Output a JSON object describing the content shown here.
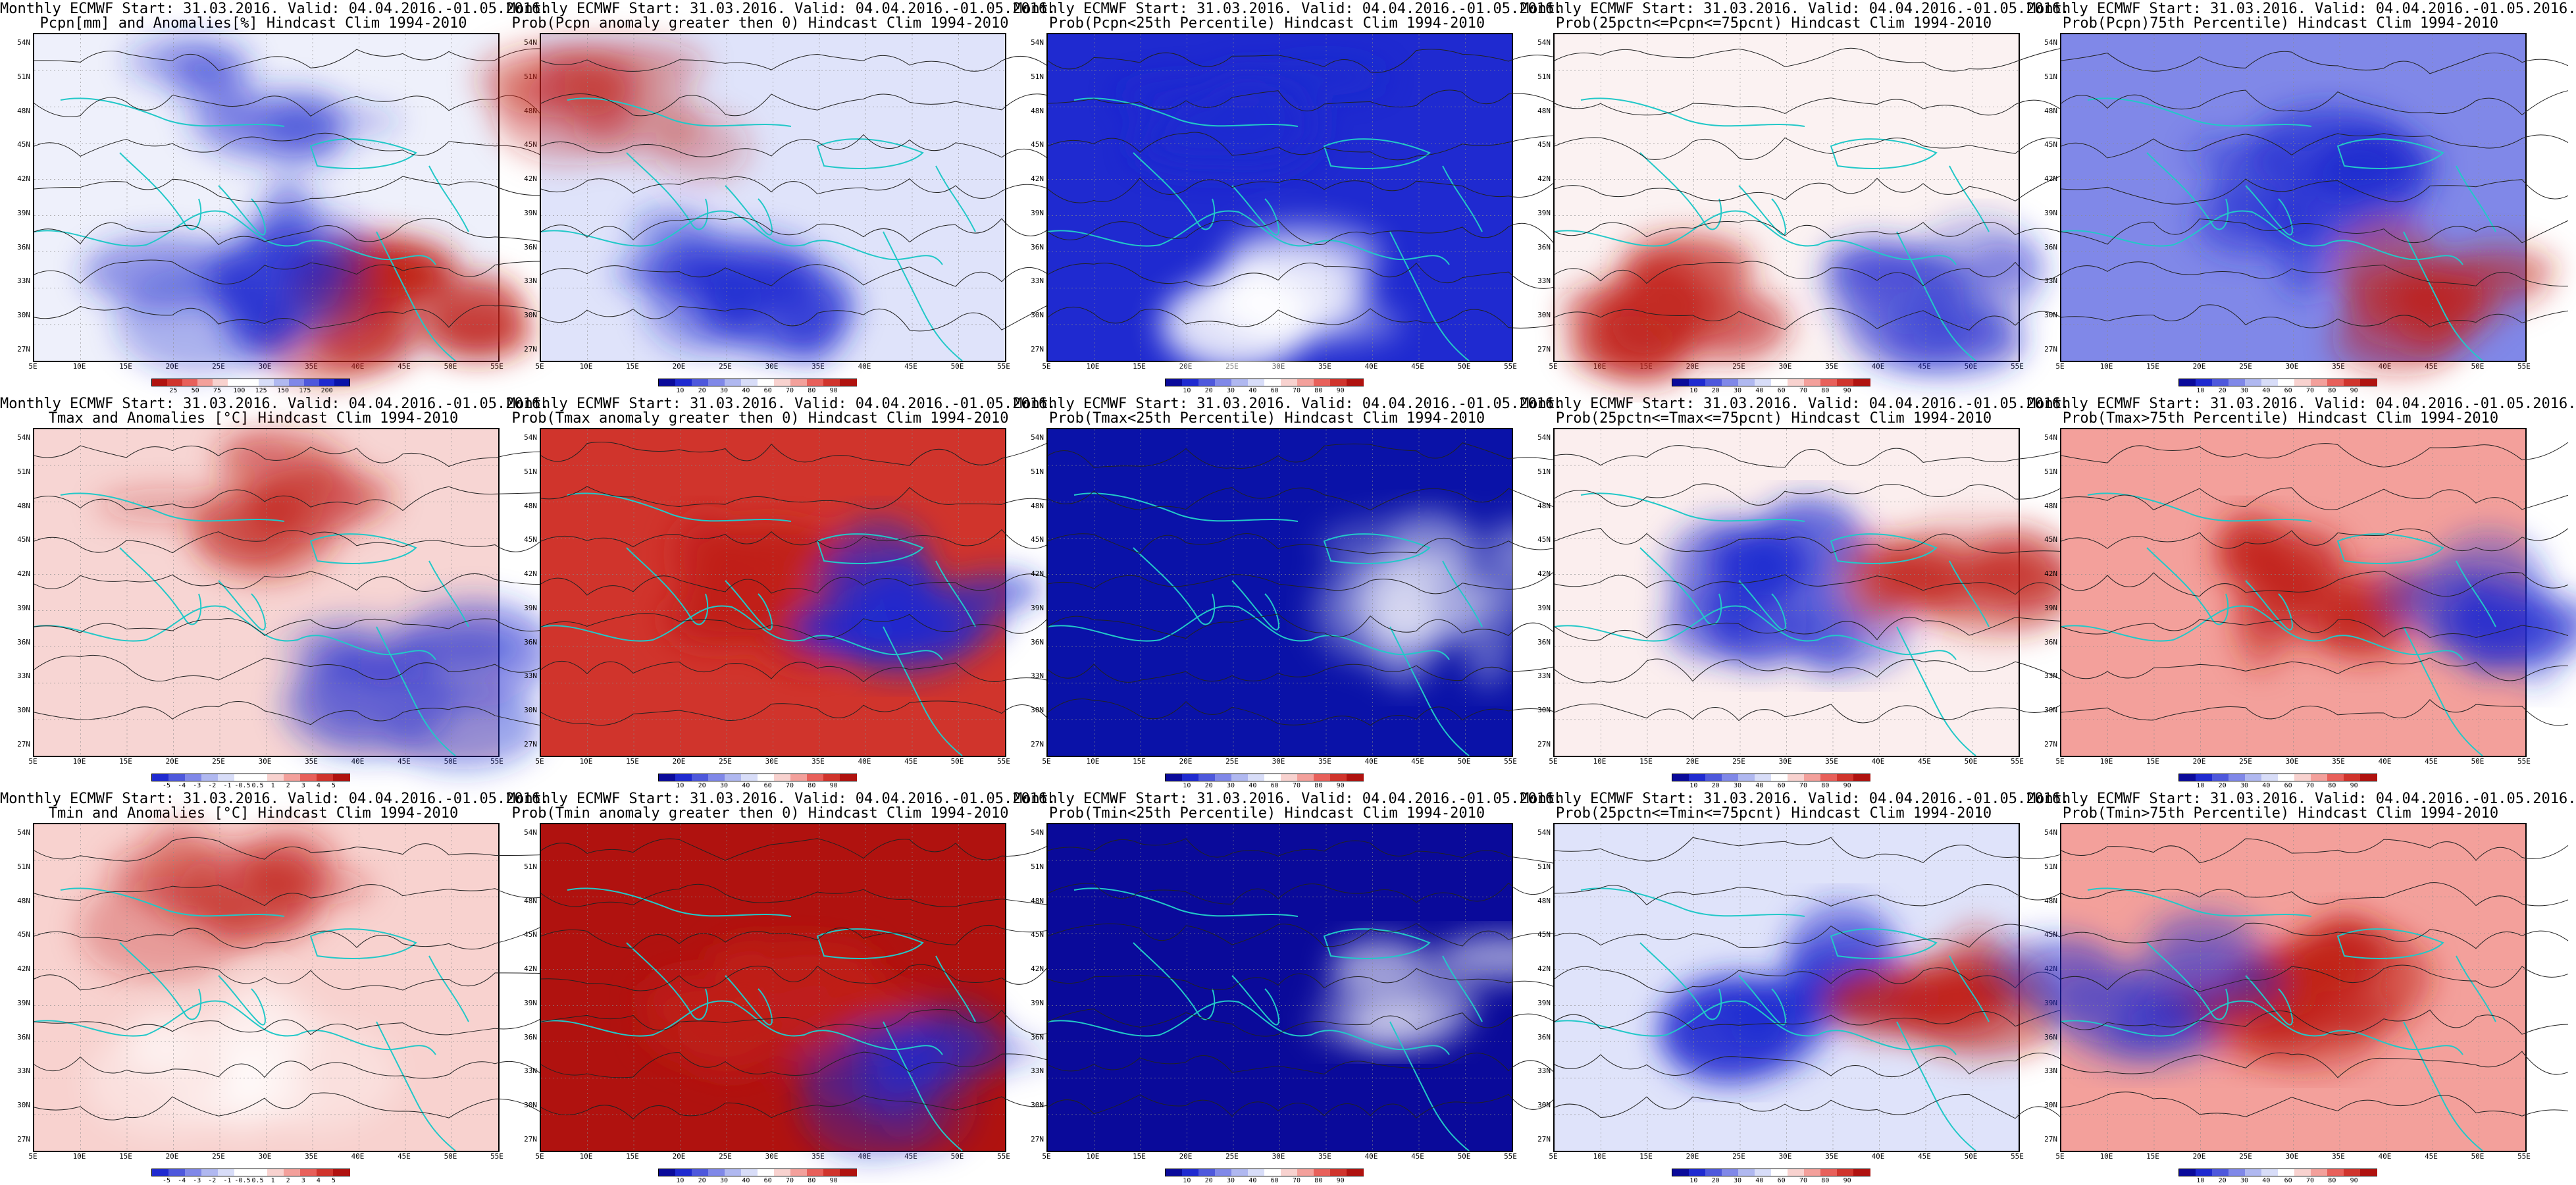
{
  "page": {
    "background": "#ffffff"
  },
  "common": {
    "map_extent_labels": {
      "lon": [
        "5E",
        "10E",
        "15E",
        "20E",
        "25E",
        "30E",
        "35E",
        "40E",
        "45E",
        "50E",
        "55E"
      ],
      "lat": [
        "54N",
        "51N",
        "48N",
        "45N",
        "42N",
        "39N",
        "36N",
        "33N",
        "30N",
        "27N"
      ]
    },
    "map_style": {
      "coastline_color": "#22c8c8",
      "contour_color": "#222222",
      "grid_color": "#8a8a8a"
    }
  },
  "palettes": {
    "precip": [
      "#b0120f",
      "#d0342c",
      "#e8605a",
      "#f3a09b",
      "#f8d2cf",
      "#ffffff",
      "#ffffff",
      "#d8ddf8",
      "#b0b8f0",
      "#8088e8",
      "#4e58dc",
      "#1f2ad0",
      "#0a12a8"
    ],
    "prob": [
      "#0a0a9a",
      "#1f2ad0",
      "#4e58dc",
      "#8088e8",
      "#b0b8f0",
      "#d8ddf8",
      "#ffffff",
      "#f8d2cf",
      "#f3a09b",
      "#e8605a",
      "#d0342c",
      "#b0120f"
    ],
    "temp": [
      "#1f2ad0",
      "#4e58dc",
      "#8088e8",
      "#b0b8f0",
      "#d8ddf8",
      "#ffffff",
      "#ffffff",
      "#f8d2cf",
      "#f3a09b",
      "#e8605a",
      "#d0342c",
      "#b0120f"
    ]
  },
  "panels": [
    {
      "title1": "Monthly ECMWF Start: 31.03.2016. Valid: 04.04.2016.-01.05.2016.",
      "title2": "Pcpn[mm] and Anomalies[%] Hindcast Clim 1994-2010",
      "palette": "precip",
      "colorbar_labels": [
        "25",
        "50",
        "75",
        "100",
        "125",
        "150",
        "175",
        "200"
      ],
      "fill": {
        "base": "#eef0fb",
        "blobs": [
          {
            "kind": "warm",
            "strength": 0.95,
            "note": "southeast"
          },
          {
            "kind": "cool",
            "strength": 0.6,
            "note": "south"
          },
          {
            "kind": "cool",
            "strength": 0.4,
            "note": "north"
          }
        ]
      }
    },
    {
      "title1": "Monthly ECMWF Start: 31.03.2016. Valid: 04.04.2016.-01.05.2016.",
      "title2": "Prob(Pcpn anomaly greater then 0) Hindcast Clim 1994-2010",
      "palette": "prob",
      "colorbar_labels": [
        "10",
        "20",
        "30",
        "40",
        "60",
        "70",
        "80",
        "90"
      ],
      "fill": {
        "base": "#dfe3fa",
        "blobs": [
          {
            "kind": "cool",
            "strength": 0.75,
            "note": "south"
          },
          {
            "kind": "warm",
            "strength": 0.35,
            "note": "northwest"
          }
        ]
      }
    },
    {
      "title1": "Monthly ECMWF Start: 31.03.2016. Valid: 04.04.2016.-01.05.2016.",
      "title2": "Prob(Pcpn<25th Percentile) Hindcast Clim 1994-2010",
      "palette": "prob",
      "colorbar_labels": [
        "10",
        "20",
        "30",
        "40",
        "60",
        "70",
        "80",
        "90"
      ],
      "fill": {
        "base": "#1f2ad0",
        "blobs": [
          {
            "kind": "light",
            "strength": 0.7,
            "note": "south"
          },
          {
            "kind": "cool",
            "strength": 0.9,
            "note": "north"
          }
        ]
      }
    },
    {
      "title1": "Monthly ECMWF Start: 31.03.2016. Valid: 04.04.2016.-01.05.2016.",
      "title2": "Prob(25pctn<=Pcpn<=75pcnt) Hindcast Clim 1994-2010",
      "palette": "prob",
      "colorbar_labels": [
        "10",
        "20",
        "30",
        "40",
        "60",
        "70",
        "80",
        "90"
      ],
      "fill": {
        "base": "#fbf2f2",
        "blobs": [
          {
            "kind": "warm",
            "strength": 0.8,
            "note": "southwest"
          },
          {
            "kind": "cool",
            "strength": 0.5,
            "note": "southeast"
          }
        ]
      }
    },
    {
      "title1": "Monthly ECMWF Start: 31.03.2016. Valid: 04.04.2016.-01.05.2016.",
      "title2": "Prob(Pcpn)75th Percentile) Hindcast Clim 1994-2010",
      "palette": "prob",
      "colorbar_labels": [
        "10",
        "20",
        "30",
        "40",
        "60",
        "70",
        "80",
        "90"
      ],
      "fill": {
        "base": "#8088e8",
        "blobs": [
          {
            "kind": "cool",
            "strength": 0.85,
            "note": "center"
          },
          {
            "kind": "warm",
            "strength": 0.6,
            "note": "southeast"
          }
        ]
      }
    },
    {
      "title1": "Monthly ECMWF Start: 31.03.2016. Valid: 04.04.2016.-01.05.2016.",
      "title2": "Tmax and Anomalies [°C] Hindcast Clim 1994-2010",
      "palette": "temp",
      "colorbar_labels": [
        "-5",
        "-4",
        "-3",
        "-2",
        "-1",
        "-0.5",
        "0.5",
        "1",
        "2",
        "3",
        "4",
        "5"
      ],
      "fill": {
        "base": "#f7d5d3",
        "blobs": [
          {
            "kind": "warm",
            "strength": 0.5,
            "note": "north"
          },
          {
            "kind": "cool",
            "strength": 0.5,
            "note": "southeast"
          }
        ]
      }
    },
    {
      "title1": "Monthly ECMWF Start: 31.03.2016. Valid: 04.04.2016.-01.05.2016.",
      "title2": "Prob(Tmax anomaly greater then 0) Hindcast Clim 1994-2010",
      "palette": "prob",
      "colorbar_labels": [
        "10",
        "20",
        "30",
        "40",
        "60",
        "70",
        "80",
        "90"
      ],
      "fill": {
        "base": "#d0342c",
        "blobs": [
          {
            "kind": "warm",
            "strength": 0.95,
            "note": "center"
          },
          {
            "kind": "cool",
            "strength": 0.7,
            "note": "east"
          }
        ]
      }
    },
    {
      "title1": "Monthly ECMWF Start: 31.03.2016. Valid: 04.04.2016.-01.05.2016.",
      "title2": "Prob(Tmax<25th Percentile) Hindcast Clim 1994-2010",
      "palette": "prob",
      "colorbar_labels": [
        "10",
        "20",
        "30",
        "40",
        "60",
        "70",
        "80",
        "90"
      ],
      "fill": {
        "base": "#0a12a8",
        "blobs": [
          {
            "kind": "light",
            "strength": 0.5,
            "note": "east"
          }
        ]
      }
    },
    {
      "title1": "Monthly ECMWF Start: 31.03.2016. Valid: 04.04.2016.-01.05.2016.",
      "title2": "Prob(25pctn<=Tmax<=75pcnt) Hindcast Clim 1994-2010",
      "palette": "prob",
      "colorbar_labels": [
        "10",
        "20",
        "30",
        "40",
        "60",
        "70",
        "80",
        "90"
      ],
      "fill": {
        "base": "#fbeeee",
        "blobs": [
          {
            "kind": "cool",
            "strength": 0.85,
            "note": "center"
          },
          {
            "kind": "warm",
            "strength": 0.5,
            "note": "east"
          }
        ]
      }
    },
    {
      "title1": "Monthly ECMWF Start: 31.03.2016. Valid: 04.04.2016.-01.05.2016.",
      "title2": "Prob(Tmax>75th Percentile) Hindcast Clim 1994-2010",
      "palette": "prob",
      "colorbar_labels": [
        "10",
        "20",
        "30",
        "40",
        "60",
        "70",
        "80",
        "90"
      ],
      "fill": {
        "base": "#f3a09b",
        "blobs": [
          {
            "kind": "warm",
            "strength": 0.9,
            "note": "center"
          },
          {
            "kind": "cool",
            "strength": 0.6,
            "note": "east"
          }
        ]
      }
    },
    {
      "title1": "Monthly ECMWF Start: 31.03.2016. Valid: 04.04.2016.-01.05.2016.",
      "title2": "Tmin and Anomalies [°C] Hindcast Clim 1994-2010",
      "palette": "temp",
      "colorbar_labels": [
        "-5",
        "-4",
        "-3",
        "-2",
        "-1",
        "-0.5",
        "0.5",
        "1",
        "2",
        "3",
        "4",
        "5"
      ],
      "fill": {
        "base": "#f8d2cf",
        "blobs": [
          {
            "kind": "warm",
            "strength": 0.45,
            "note": "north"
          },
          {
            "kind": "light",
            "strength": 0.4,
            "note": "south"
          }
        ]
      }
    },
    {
      "title1": "Monthly ECMWF Start: 31.03.2016. Valid: 04.04.2016.-01.05.2016.",
      "title2": "Prob(Tmin anomaly greater then 0) Hindcast Clim 1994-2010",
      "palette": "prob",
      "colorbar_labels": [
        "10",
        "20",
        "30",
        "40",
        "60",
        "70",
        "80",
        "90"
      ],
      "fill": {
        "base": "#b0120f",
        "blobs": [
          {
            "kind": "warm",
            "strength": 0.95,
            "note": "center"
          },
          {
            "kind": "cool",
            "strength": 0.5,
            "note": "southeast"
          }
        ]
      }
    },
    {
      "title1": "Monthly ECMWF Start: 31.03.2016. Valid: 04.04.2016.-01.05.2016.",
      "title2": "Prob(Tmin<25th Percentile) Hindcast Clim 1994-2010",
      "palette": "prob",
      "colorbar_labels": [
        "10",
        "20",
        "30",
        "40",
        "60",
        "70",
        "80",
        "90"
      ],
      "fill": {
        "base": "#0a0a9a",
        "blobs": [
          {
            "kind": "light",
            "strength": 0.45,
            "note": "east"
          }
        ]
      }
    },
    {
      "title1": "Monthly ECMWF Start: 31.03.2016. Valid: 04.04.2016.-01.05.2016.",
      "title2": "Prob(25pctn<=Tmin<=75pcnt) Hindcast Clim 1994-2010",
      "palette": "prob",
      "colorbar_labels": [
        "10",
        "20",
        "30",
        "40",
        "60",
        "70",
        "80",
        "90"
      ],
      "fill": {
        "base": "#dfe3fa",
        "blobs": [
          {
            "kind": "cool",
            "strength": 0.9,
            "note": "center"
          },
          {
            "kind": "warm",
            "strength": 0.6,
            "note": "east"
          }
        ]
      }
    },
    {
      "title1": "Monthly ECMWF Start: 31.03.2016. Valid: 04.04.2016.-01.05.2016.",
      "title2": "Prob(Tmin>75th Percentile) Hindcast Clim 1994-2010",
      "palette": "prob",
      "colorbar_labels": [
        "10",
        "20",
        "30",
        "40",
        "60",
        "70",
        "80",
        "90"
      ],
      "fill": {
        "base": "#f3a09b",
        "blobs": [
          {
            "kind": "warm",
            "strength": 0.95,
            "note": "center"
          },
          {
            "kind": "cool",
            "strength": 0.6,
            "note": "west"
          }
        ]
      }
    }
  ]
}
